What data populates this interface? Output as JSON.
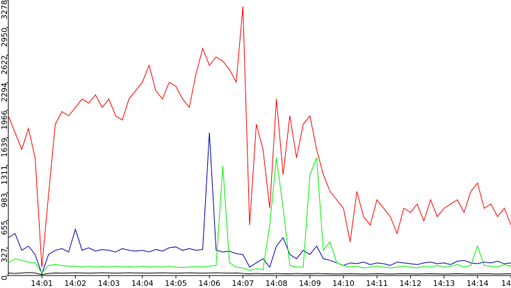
{
  "chart_data": {
    "type": "line",
    "x": [
      0,
      0.2,
      0.4,
      0.6,
      0.8,
      1,
      1.2,
      1.4,
      1.6,
      1.8,
      2,
      2.2,
      2.4,
      2.6,
      2.8,
      3,
      3.2,
      3.4,
      3.6,
      3.8,
      4,
      4.2,
      4.4,
      4.6,
      4.8,
      5,
      5.2,
      5.4,
      5.6,
      5.8,
      6,
      6.2,
      6.4,
      6.6,
      6.8,
      7,
      7.2,
      7.4,
      7.6,
      7.8,
      8,
      8.2,
      8.4,
      8.6,
      8.8,
      9,
      9.2,
      9.4,
      9.6,
      9.8,
      10,
      10.2,
      10.4,
      10.6,
      10.8,
      11,
      11.2,
      11.4,
      11.6,
      11.8,
      12,
      12.2,
      12.4,
      12.6,
      12.8,
      13,
      13.2,
      13.4,
      13.6,
      13.8,
      14,
      14.2,
      14.4,
      14.6,
      14.8,
      15
    ],
    "series": [
      {
        "color": "#ff0000",
        "values": [
          1900,
          1700,
          1500,
          1750,
          1400,
          100,
          960,
          1800,
          1950,
          1900,
          2000,
          2100,
          2050,
          2150,
          2000,
          2100,
          1900,
          1850,
          2100,
          2200,
          2300,
          2500,
          2200,
          2100,
          2300,
          2250,
          2100,
          2000,
          2400,
          2700,
          2500,
          2600,
          2550,
          2450,
          2300,
          3200,
          600,
          1800,
          1500,
          800,
          2100,
          1200,
          1900,
          1400,
          1800,
          1900,
          1500,
          1200,
          1000,
          900,
          800,
          400,
          1000,
          700,
          600,
          900,
          800,
          700,
          500,
          800,
          750,
          850,
          650,
          900,
          700,
          800,
          850,
          900,
          750,
          1000,
          1100,
          800,
          850,
          700,
          800,
          600
        ]
      },
      {
        "color": "#0000aa",
        "values": [
          450,
          500,
          300,
          350,
          250,
          20,
          250,
          300,
          320,
          280,
          550,
          300,
          330,
          290,
          310,
          300,
          280,
          320,
          300,
          290,
          300,
          280,
          310,
          290,
          330,
          340,
          300,
          320,
          300,
          310,
          1700,
          300,
          280,
          290,
          260,
          250,
          100,
          150,
          200,
          100,
          350,
          450,
          250,
          200,
          300,
          250,
          350,
          200,
          180,
          150,
          120,
          150,
          140,
          160,
          130,
          150,
          140,
          120,
          160,
          150,
          140,
          130,
          150,
          160,
          140,
          150,
          130,
          170,
          180,
          150,
          140,
          160,
          150,
          170,
          140,
          150
        ]
      },
      {
        "color": "#00ee00",
        "values": [
          150,
          200,
          180,
          160,
          150,
          30,
          120,
          130,
          120,
          110,
          110,
          100,
          110,
          100,
          105,
          100,
          110,
          100,
          105,
          100,
          110,
          100,
          105,
          100,
          110,
          100,
          95,
          100,
          105,
          100,
          110,
          120,
          1300,
          150,
          100,
          90,
          60,
          80,
          70,
          600,
          1400,
          800,
          120,
          100,
          100,
          1200,
          1400,
          300,
          400,
          150,
          120,
          100,
          110,
          90,
          100,
          110,
          100,
          90,
          100,
          110,
          100,
          90,
          110,
          100,
          120,
          100,
          110,
          130,
          100,
          120,
          350,
          120,
          110,
          100,
          130,
          110
        ]
      },
      {
        "color": "#000000",
        "values": [
          30,
          25,
          30,
          35,
          30,
          10,
          25,
          30,
          28,
          30,
          32,
          30,
          28,
          30,
          33,
          30,
          28,
          30,
          32,
          30,
          30,
          28,
          30,
          32,
          30,
          28,
          30,
          32,
          30,
          28,
          30,
          32,
          30,
          28,
          30,
          25,
          20,
          25,
          22,
          20,
          25,
          22,
          20,
          25,
          22,
          20,
          25,
          22,
          20,
          18,
          20,
          22,
          20,
          18,
          20,
          22,
          20,
          18,
          20,
          22,
          20,
          18,
          20,
          22,
          20,
          18,
          20,
          22,
          20,
          18,
          20,
          22,
          20,
          18,
          20,
          22
        ]
      }
    ],
    "xlim": [
      0,
      15
    ],
    "xticks": [
      {
        "value": 1,
        "label": "14:01"
      },
      {
        "value": 2,
        "label": "14:02"
      },
      {
        "value": 3,
        "label": "14:03"
      },
      {
        "value": 4,
        "label": "14:04"
      },
      {
        "value": 5,
        "label": "14:05"
      },
      {
        "value": 6,
        "label": "14:06"
      },
      {
        "value": 7,
        "label": "14:07"
      },
      {
        "value": 8,
        "label": "14:08"
      },
      {
        "value": 9,
        "label": "14:09"
      },
      {
        "value": 10,
        "label": "14:10"
      },
      {
        "value": 11,
        "label": "14:11"
      },
      {
        "value": 12,
        "label": "14:12"
      },
      {
        "value": 13,
        "label": "14:13"
      },
      {
        "value": 14,
        "label": "14:14"
      },
      {
        "value": 15,
        "label": "14"
      }
    ],
    "ylim": [
      0,
      3278
    ],
    "yticks": [
      0,
      327,
      655,
      983,
      1311,
      1639,
      1966,
      2294,
      2622,
      2950,
      3278
    ]
  }
}
